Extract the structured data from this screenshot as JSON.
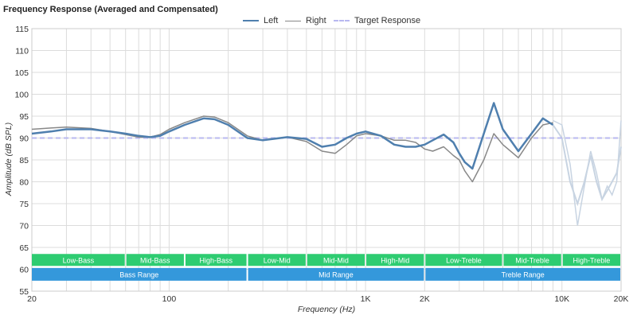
{
  "title": "Frequency Response (Averaged and Compensated)",
  "legend": [
    {
      "label": "Left",
      "color": "#4f7fae",
      "style": "solid"
    },
    {
      "label": "Right",
      "color": "#888888",
      "style": "solid"
    },
    {
      "label": "Target Response",
      "color": "#b8b8f0",
      "style": "dashed"
    }
  ],
  "colors": {
    "grid": "#dcdcdc",
    "band_green": "#2ecc71",
    "band_blue": "#3498db",
    "muted_tail": "#c8d4e2"
  },
  "chart_data": {
    "type": "line",
    "title": "Frequency Response (Averaged and Compensated)",
    "xlabel": "Frequency (Hz)",
    "ylabel": "Amplitude (dB SPL)",
    "xscale": "log",
    "xlim": [
      20,
      20000
    ],
    "ylim": [
      55,
      115
    ],
    "x_ticks": [
      {
        "value": 20,
        "label": "20"
      },
      {
        "value": 100,
        "label": "100"
      },
      {
        "value": 1000,
        "label": "1K"
      },
      {
        "value": 2000,
        "label": "2K"
      },
      {
        "value": 10000,
        "label": "10K"
      },
      {
        "value": 20000,
        "label": "20K"
      }
    ],
    "y_ticks": [
      55,
      60,
      65,
      70,
      75,
      80,
      85,
      90,
      95,
      100,
      105,
      110,
      115
    ],
    "grid": true,
    "legend_position": "top-center",
    "series": [
      {
        "name": "Left",
        "x": [
          20,
          25,
          30,
          40,
          50,
          60,
          70,
          80,
          90,
          100,
          120,
          150,
          170,
          200,
          250,
          300,
          400,
          500,
          600,
          700,
          800,
          900,
          1000,
          1200,
          1400,
          1600,
          1800,
          2000,
          2200,
          2500,
          2800,
          3000,
          3200,
          3500,
          4000,
          4500,
          5000,
          6000,
          7000,
          8000,
          9000
        ],
        "y": [
          91,
          91.5,
          92,
          92,
          91.5,
          91,
          90.5,
          90.2,
          90.5,
          91.5,
          93,
          94.5,
          94.3,
          93,
          90,
          89.5,
          90.2,
          89.8,
          88,
          88.5,
          90,
          91,
          91.5,
          90.5,
          88.5,
          88,
          88,
          88.5,
          89.5,
          90.8,
          89,
          86.5,
          84.5,
          83,
          91,
          98,
          92,
          87,
          91,
          94.5,
          93
        ]
      },
      {
        "name": "Right",
        "x": [
          20,
          25,
          30,
          40,
          50,
          60,
          70,
          80,
          90,
          100,
          120,
          150,
          170,
          200,
          250,
          300,
          400,
          500,
          600,
          700,
          800,
          900,
          1000,
          1200,
          1400,
          1600,
          1800,
          2000,
          2200,
          2500,
          2800,
          3000,
          3200,
          3500,
          4000,
          4500,
          5000,
          6000,
          7000,
          8000,
          9000
        ],
        "y": [
          92,
          92.3,
          92.5,
          92.2,
          91.5,
          90.8,
          90.2,
          90.2,
          90.8,
          92,
          93.5,
          95,
          94.8,
          93.5,
          90.5,
          89.5,
          90.2,
          89.2,
          87,
          86.5,
          88.5,
          90.5,
          91,
          90.5,
          89.5,
          89.5,
          89,
          87.5,
          87,
          88,
          86,
          85,
          82.5,
          80,
          85,
          91,
          88.5,
          85.5,
          90,
          93,
          93.5
        ]
      },
      {
        "name": "Target Response",
        "x": [
          20,
          20000
        ],
        "y": [
          90,
          90
        ]
      },
      {
        "name": "",
        "x": [
          9000,
          10000,
          11000,
          12000,
          13000,
          14000,
          15000,
          16000,
          17000,
          18000,
          19000,
          20000
        ],
        "y": [
          93,
          90,
          80,
          75,
          80,
          86,
          80,
          76,
          78,
          80,
          82,
          88
        ]
      },
      {
        "name": "",
        "x": [
          9000,
          10000,
          11000,
          12000,
          13000,
          14000,
          15000,
          16000,
          17000,
          18000,
          19000,
          20000
        ],
        "y": [
          94,
          93,
          84,
          70,
          79,
          87,
          82,
          76,
          79,
          77,
          80,
          94
        ]
      }
    ],
    "bands": {
      "rows": [
        [
          {
            "label": "Low-Bass",
            "from": 20,
            "to": 60
          },
          {
            "label": "Mid-Bass",
            "from": 60,
            "to": 120
          },
          {
            "label": "High-Bass",
            "from": 120,
            "to": 250
          },
          {
            "label": "Low-Mid",
            "from": 250,
            "to": 500
          },
          {
            "label": "Mid-Mid",
            "from": 500,
            "to": 1000
          },
          {
            "label": "High-Mid",
            "from": 1000,
            "to": 2000
          },
          {
            "label": "Low-Treble",
            "from": 2000,
            "to": 5000
          },
          {
            "label": "Mid-Treble",
            "from": 5000,
            "to": 10000
          },
          {
            "label": "High-Treble",
            "from": 10000,
            "to": 20000
          }
        ],
        [
          {
            "label": "Bass Range",
            "from": 20,
            "to": 250
          },
          {
            "label": "Mid Range",
            "from": 250,
            "to": 2000
          },
          {
            "label": "Treble Range",
            "from": 2000,
            "to": 20000
          }
        ]
      ]
    }
  }
}
